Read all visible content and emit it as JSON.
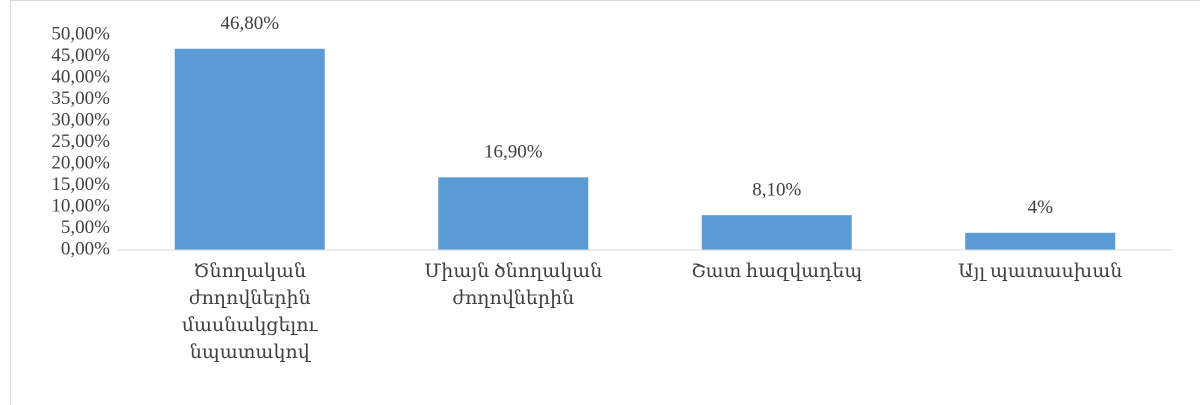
{
  "chart_data": {
    "type": "bar",
    "categories": [
      "Ծնողական ժողովներին մասնակցելու նպատակով",
      "Միայն ծնողական ժողովներին",
      "Շատ հազվադեպ",
      "Այլ պատասխան"
    ],
    "values": [
      46.8,
      16.9,
      8.1,
      4
    ],
    "value_labels": [
      "46,80%",
      "16,90%",
      "8,10%",
      "4%"
    ],
    "color": "#5b9bd5",
    "ylim": [
      0,
      50
    ],
    "yticks": [
      {
        "value": 0,
        "label": "0,00%"
      },
      {
        "value": 5,
        "label": "5,00%"
      },
      {
        "value": 10,
        "label": "10,00%"
      },
      {
        "value": 15,
        "label": "15,00%"
      },
      {
        "value": 20,
        "label": "20,00%"
      },
      {
        "value": 25,
        "label": "25,00%"
      },
      {
        "value": 30,
        "label": "30,00%"
      },
      {
        "value": 35,
        "label": "35,00%"
      },
      {
        "value": 40,
        "label": "40,00%"
      },
      {
        "value": 45,
        "label": "45,00%"
      },
      {
        "value": 50,
        "label": "50,00%"
      }
    ],
    "grid": false
  }
}
